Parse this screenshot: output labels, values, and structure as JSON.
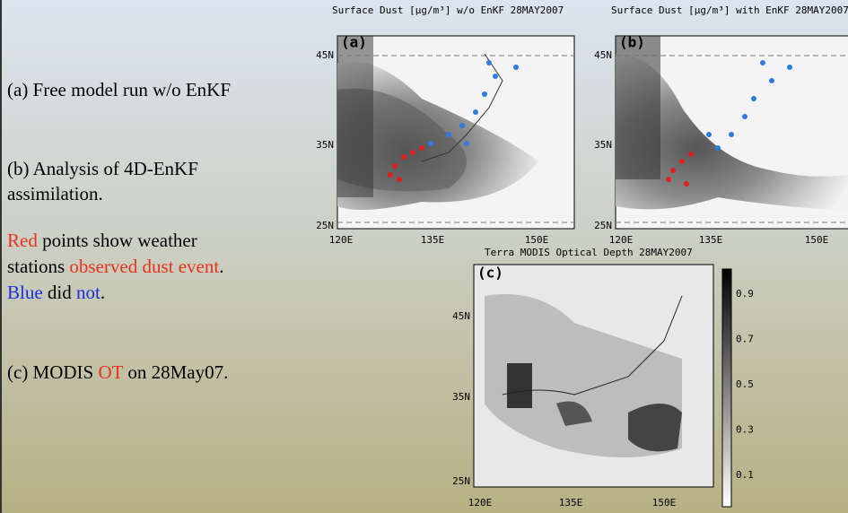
{
  "left_text": [
    [
      {
        "text": "(a) Free model run w/o EnKF",
        "color": "#000000"
      }
    ],
    [
      {
        "text": "(b) Analysis of 4D-EnKF",
        "color": "#000000"
      }
    ],
    [
      {
        "text": "assimilation.",
        "color": "#000000"
      }
    ],
    [
      {
        "text": "Red",
        "color": "#e8321e"
      },
      {
        "text": " points show weather",
        "color": "#000000"
      }
    ],
    [
      {
        "text": "stations ",
        "color": "#000000"
      },
      {
        "text": "observed dust event",
        "color": "#e8321e"
      },
      {
        "text": ".",
        "color": "#000000"
      }
    ],
    [
      {
        "text": "Blue",
        "color": "#1a2ee0"
      },
      {
        "text": " did ",
        "color": "#000000"
      },
      {
        "text": "not",
        "color": "#1a2ee0"
      },
      {
        "text": ".",
        "color": "#000000"
      }
    ],
    [
      {
        "text": "(c) MODIS ",
        "color": "#000000"
      },
      {
        "text": "OT",
        "color": "#e8321e"
      },
      {
        "text": " on 28May07.",
        "color": "#000000"
      }
    ]
  ],
  "panels": [
    {
      "title": "Surface Dust [μg/m³] w/o EnKF 28MAY2007",
      "tag": "(a)",
      "lat_labels": [
        "45N",
        "35N",
        "25N"
      ],
      "lon_labels": [
        "120E",
        "135E",
        "150E"
      ]
    },
    {
      "title": "Surface Dust [μg/m³] with EnKF 28MAY2007",
      "tag": "(b)",
      "lat_labels": [
        "45N",
        "35N",
        "25N"
      ],
      "lon_labels": [
        "120E",
        "135E",
        "150E"
      ]
    },
    {
      "title": "Terra MODIS Optical Depth 28MAY2007",
      "tag": "(c)",
      "lat_labels": [
        "45N",
        "35N",
        "25N"
      ],
      "lon_labels": [
        "120E",
        "135E",
        "150E"
      ],
      "colorbar_labels": [
        "0.9",
        "0.7",
        "0.5",
        "0.3",
        "0.1"
      ]
    }
  ]
}
